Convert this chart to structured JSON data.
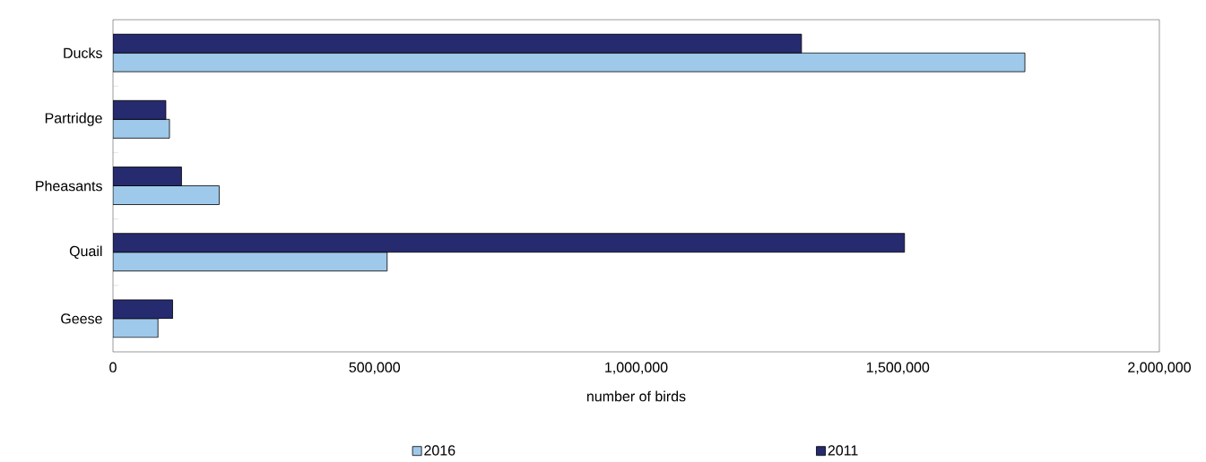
{
  "chart_data": {
    "type": "bar",
    "orientation": "horizontal",
    "xlabel": "number of birds",
    "categories": [
      "Ducks",
      "Partridge",
      "Pheasants",
      "Quail",
      "Geese"
    ],
    "series": [
      {
        "name": "2016",
        "color": "#9fc9ea",
        "values": [
          1743000,
          108000,
          203000,
          524000,
          86000
        ]
      },
      {
        "name": "2011",
        "color": "#262a6e",
        "values": [
          1316000,
          101000,
          131000,
          1513000,
          114000
        ]
      }
    ],
    "xlim": [
      0,
      2000000
    ],
    "xticks": [
      0,
      {
        "value": 500000,
        "label": "500,000"
      },
      {
        "value": 1000000,
        "label": "1,000,000"
      },
      {
        "value": 1500000,
        "label": "1,500,000"
      },
      {
        "value": 2000000,
        "label": "2,000,000"
      }
    ],
    "legend": "bottom"
  }
}
